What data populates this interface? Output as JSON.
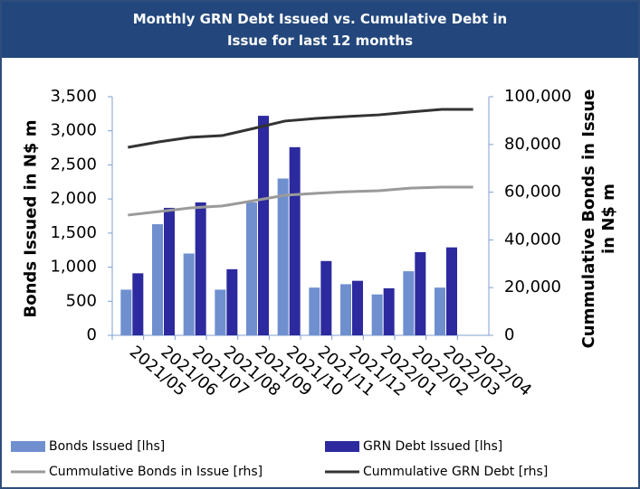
{
  "chart_data": {
    "type": "bar-line",
    "title": "Monthly GRN Debt Issued vs. Cumulative Debt in Issue for last 12 months",
    "ylabel": "Bonds Issued in N$ m",
    "y2label": "Cummulative Bonds in Issue in N$ m",
    "categories": [
      "2021/05",
      "2021/06",
      "2021/07",
      "2021/08",
      "2021/09",
      "2021/10",
      "2021/11",
      "2021/12",
      "2022/01",
      "2022/02",
      "2022/03",
      "2022/04"
    ],
    "series": [
      {
        "name": "Bonds Issued [lhs]",
        "type": "bar",
        "color": "#6f8fcf",
        "values": [
          670,
          1630,
          1200,
          670,
          1950,
          2300,
          700,
          750,
          600,
          940,
          700,
          null
        ]
      },
      {
        "name": "GRN Debt Issued [lhs]",
        "type": "bar",
        "color": "#2c2a9e",
        "values": [
          910,
          1870,
          1950,
          970,
          3220,
          2760,
          1090,
          800,
          690,
          1220,
          1290,
          null
        ]
      },
      {
        "name": "Cummulative Bonds in Issue [rhs]",
        "type": "line",
        "axis": "y2",
        "color": "#9a9a9a",
        "values": [
          50400,
          51900,
          53400,
          54200,
          56400,
          58700,
          59500,
          60200,
          60600,
          61700,
          62100,
          62100
        ]
      },
      {
        "name": "Cummulative GRN Debt [rhs]",
        "type": "line",
        "axis": "y2",
        "color": "#333333",
        "values": [
          78800,
          81100,
          83000,
          83700,
          86700,
          89800,
          90900,
          91700,
          92400,
          93600,
          94700,
          94700
        ]
      }
    ],
    "ylim": [
      0,
      3500
    ],
    "yticks": [
      0,
      500,
      {
        "value": 1000,
        "label": "1,000"
      },
      {
        "value": 1500,
        "label": "1,500"
      },
      {
        "value": 2000,
        "label": "2,000"
      },
      {
        "value": 2500,
        "label": "2,500"
      },
      {
        "value": 3000,
        "label": "3,000"
      },
      {
        "value": 3500,
        "label": "3,500"
      }
    ],
    "y2lim": [
      0,
      100000
    ],
    "y2ticks": [
      0,
      {
        "value": 20000,
        "label": "20,000"
      },
      {
        "value": 40000,
        "label": "40,000"
      },
      {
        "value": 60000,
        "label": "60,000"
      },
      {
        "value": 80000,
        "label": "80,000"
      },
      {
        "value": 100000,
        "label": "100,000"
      }
    ],
    "grid": false
  }
}
